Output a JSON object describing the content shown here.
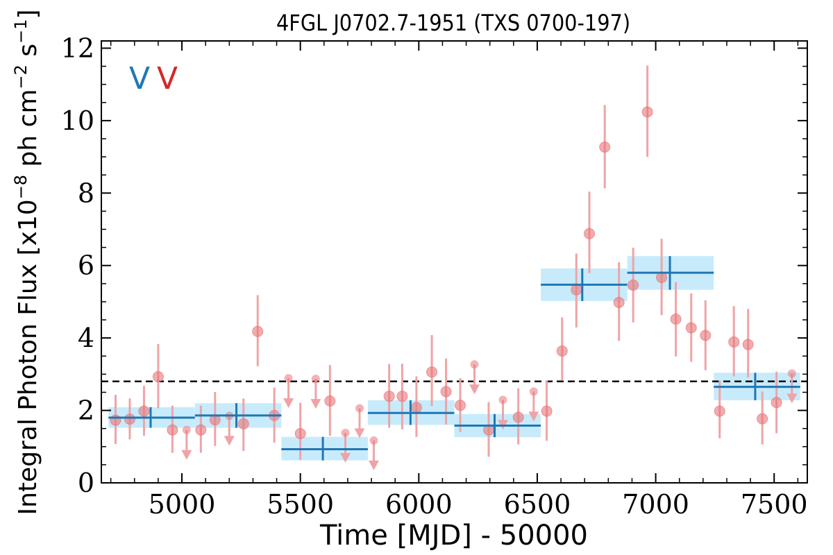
{
  "chart_data": {
    "type": "scatter",
    "title": "4FGL J0702.7-1951 (TXS 0700-197)",
    "xlabel": "Time [MJD] - 50000",
    "ylabel": "Integral Photon Flux [x10^-8 ph cm^-2 s^-1]",
    "ylabel_parts": [
      "Integral Photon Flux [x10",
      "−8",
      " ph cm",
      "−2",
      " s",
      "−1",
      "]"
    ],
    "xlim": [
      4660,
      7640
    ],
    "ylim": [
      0,
      12.2
    ],
    "xticks": [
      5000,
      5500,
      6000,
      6500,
      7000,
      7500
    ],
    "yticks": [
      0,
      2,
      4,
      6,
      8,
      10,
      12
    ],
    "grid": false,
    "legend_labels": [
      "V",
      "V"
    ],
    "colors": {
      "light_curve_1": "#1f77b4",
      "light_curve_1_band": "#c7ebfb",
      "light_curve_2": "#e8777a",
      "light_curve_2_error": "#eea4a6",
      "average": "#000000",
      "legend_1": "#1f77b4",
      "legend_2": "#d62728"
    },
    "average_flux": 2.8,
    "series": [
      {
        "binning": "long",
        "points": [
          {
            "x_start": 4690,
            "x_end": 5055,
            "x": 4868,
            "y": 1.8,
            "y_low": 1.52,
            "y_high": 2.09
          },
          {
            "x_start": 5055,
            "x_end": 5420,
            "x": 5230,
            "y": 1.86,
            "y_low": 1.52,
            "y_high": 2.2
          },
          {
            "x_start": 5420,
            "x_end": 5785,
            "x": 5595,
            "y": 0.93,
            "y_low": 0.62,
            "y_high": 1.27
          },
          {
            "x_start": 5785,
            "x_end": 6150,
            "x": 5965,
            "y": 1.93,
            "y_low": 1.6,
            "y_high": 2.28
          },
          {
            "x_start": 6150,
            "x_end": 6515,
            "x": 6320,
            "y": 1.58,
            "y_low": 1.26,
            "y_high": 1.9
          },
          {
            "x_start": 6515,
            "x_end": 6880,
            "x": 6690,
            "y": 5.47,
            "y_low": 5.02,
            "y_high": 5.92
          },
          {
            "x_start": 6880,
            "x_end": 7245,
            "x": 7060,
            "y": 5.8,
            "y_low": 5.33,
            "y_high": 6.26
          },
          {
            "x_start": 7245,
            "x_end": 7610,
            "x": 7420,
            "y": 2.65,
            "y_low": 2.28,
            "y_high": 3.04
          }
        ]
      },
      {
        "binning": "short",
        "points": [
          {
            "x": 4720,
            "y": 1.73,
            "y_low": 1.07,
            "y_high": 2.43
          },
          {
            "x": 4780,
            "y": 1.76,
            "y_low": 1.2,
            "y_high": 2.33
          },
          {
            "x": 4840,
            "y": 1.98,
            "y_low": 1.3,
            "y_high": 2.68
          },
          {
            "x": 4900,
            "y": 2.93,
            "y_low": 2.06,
            "y_high": 3.83
          },
          {
            "x": 4960,
            "y": 1.46,
            "y_low": 0.83,
            "y_high": 2.13
          },
          {
            "x": 5020,
            "y": 1.46,
            "upper_limit": true
          },
          {
            "x": 5080,
            "y": 1.46,
            "y_low": 0.83,
            "y_high": 2.13
          },
          {
            "x": 5140,
            "y": 1.74,
            "y_low": 1.02,
            "y_high": 2.51
          },
          {
            "x": 5200,
            "y": 1.85,
            "upper_limit": true
          },
          {
            "x": 5260,
            "y": 1.63,
            "y_low": 0.88,
            "y_high": 2.33
          },
          {
            "x": 5320,
            "y": 4.18,
            "y_low": 3.22,
            "y_high": 5.18
          },
          {
            "x": 5390,
            "y": 1.86,
            "y_low": 1.11,
            "y_high": 2.63
          },
          {
            "x": 5450,
            "y": 2.89,
            "upper_limit": true
          },
          {
            "x": 5500,
            "y": 1.36,
            "y_low": 0.63,
            "y_high": 2.21
          },
          {
            "x": 5565,
            "y": 2.87,
            "upper_limit": true
          },
          {
            "x": 5625,
            "y": 2.26,
            "y_low": 1.3,
            "y_high": 3.25
          },
          {
            "x": 5690,
            "y": 1.38,
            "upper_limit": true
          },
          {
            "x": 5750,
            "y": 2.06,
            "upper_limit": true
          },
          {
            "x": 5810,
            "y": 1.17,
            "upper_limit": true
          },
          {
            "x": 5875,
            "y": 2.39,
            "y_low": 1.52,
            "y_high": 3.28
          },
          {
            "x": 5930,
            "y": 2.39,
            "y_low": 1.48,
            "y_high": 3.29
          },
          {
            "x": 5990,
            "y": 2.08,
            "y_low": 1.27,
            "y_high": 2.94
          },
          {
            "x": 6055,
            "y": 3.06,
            "y_low": 2.12,
            "y_high": 4.08
          },
          {
            "x": 6115,
            "y": 2.52,
            "y_low": 1.61,
            "y_high": 3.43
          },
          {
            "x": 6175,
            "y": 2.14,
            "y_low": 1.4,
            "y_high": 2.89
          },
          {
            "x": 6235,
            "y": 3.27,
            "upper_limit": true
          },
          {
            "x": 6295,
            "y": 1.46,
            "y_low": 0.72,
            "y_high": 2.23
          },
          {
            "x": 6355,
            "y": 2.29,
            "upper_limit": true
          },
          {
            "x": 6420,
            "y": 1.81,
            "y_low": 1.06,
            "y_high": 2.61
          },
          {
            "x": 6485,
            "y": 2.52,
            "upper_limit": true
          },
          {
            "x": 6540,
            "y": 1.98,
            "y_low": 1.16,
            "y_high": 2.83
          },
          {
            "x": 6605,
            "y": 3.64,
            "y_low": 2.82,
            "y_high": 4.57
          },
          {
            "x": 6665,
            "y": 5.33,
            "y_low": 4.29,
            "y_high": 6.33
          },
          {
            "x": 6720,
            "y": 6.88,
            "y_low": 5.79,
            "y_high": 8.04
          },
          {
            "x": 6785,
            "y": 9.27,
            "y_low": 8.13,
            "y_high": 10.43
          },
          {
            "x": 6845,
            "y": 4.98,
            "y_low": 3.92,
            "y_high": 6.09
          },
          {
            "x": 6905,
            "y": 5.46,
            "y_low": 4.43,
            "y_high": 6.49
          },
          {
            "x": 6965,
            "y": 10.24,
            "y_low": 9.0,
            "y_high": 11.52
          },
          {
            "x": 7025,
            "y": 5.67,
            "y_low": 4.63,
            "y_high": 6.74
          },
          {
            "x": 7085,
            "y": 4.52,
            "y_low": 3.49,
            "y_high": 5.54
          },
          {
            "x": 7150,
            "y": 4.28,
            "y_low": 3.34,
            "y_high": 5.23
          },
          {
            "x": 7210,
            "y": 4.07,
            "y_low": 3.11,
            "y_high": 5.04
          },
          {
            "x": 7270,
            "y": 1.98,
            "y_low": 1.23,
            "y_high": 2.82
          },
          {
            "x": 7330,
            "y": 3.89,
            "y_low": 2.94,
            "y_high": 4.88
          },
          {
            "x": 7390,
            "y": 3.82,
            "y_low": 2.91,
            "y_high": 4.8
          },
          {
            "x": 7450,
            "y": 1.77,
            "y_low": 1.06,
            "y_high": 2.52
          },
          {
            "x": 7510,
            "y": 2.22,
            "y_low": 1.37,
            "y_high": 3.07
          },
          {
            "x": 7575,
            "y": 3.02,
            "upper_limit": true
          }
        ]
      }
    ]
  }
}
